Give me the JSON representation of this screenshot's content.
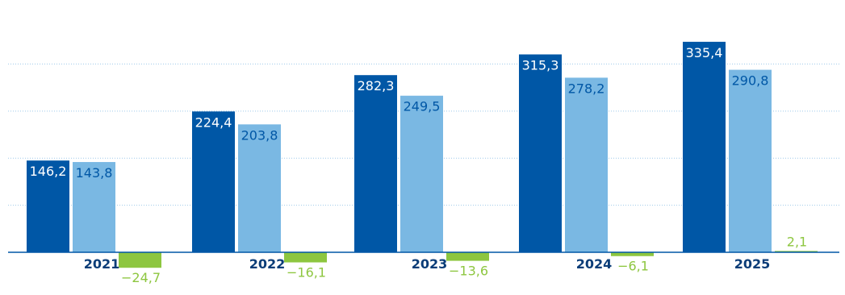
{
  "chart_data": {
    "type": "bar",
    "categories": [
      "2021",
      "2022",
      "2023",
      "2024",
      "2025"
    ],
    "series": [
      {
        "values": [
          146.2,
          224.4,
          282.3,
          315.3,
          335.4
        ],
        "labels": [
          "146,2",
          "224,4",
          "282,3",
          "315,3",
          "335,4"
        ],
        "color": "#0057A6"
      },
      {
        "values": [
          143.8,
          203.8,
          249.5,
          278.2,
          290.8
        ],
        "labels": [
          "143,8",
          "203,8",
          "249,5",
          "278,2",
          "290,8"
        ],
        "color": "#7AB8E3"
      },
      {
        "values": [
          -24.7,
          -16.1,
          -13.6,
          -6.1,
          2.1
        ],
        "labels": [
          "−24,7",
          "−16,1",
          "−13,6",
          "−6,1",
          "2,1"
        ],
        "color": "#8DC63F"
      }
    ],
    "ylim": [
      -30,
      350
    ],
    "gridlines": [
      0,
      75,
      150,
      225,
      300
    ],
    "grid": true,
    "legend": "none",
    "colors": {
      "axis": "#0057A6",
      "grid": "#9EC9EA",
      "category_label": "#0B3D78",
      "label_on_dark": "#ffffff",
      "label_on_light": "#0057A6",
      "label_negative": "#8DC63F"
    }
  }
}
